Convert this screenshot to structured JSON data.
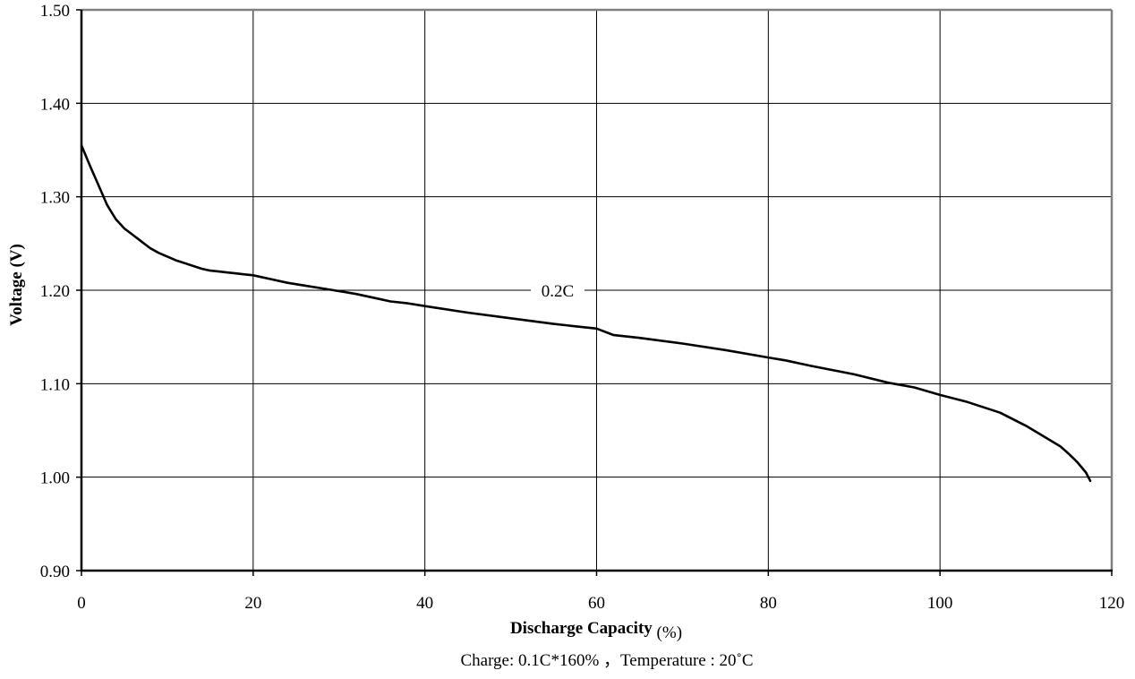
{
  "chart_data": {
    "type": "line",
    "xlabel": "Discharge Capacity",
    "xlabel_unit": "(%)",
    "ylabel": "Voltage (V)",
    "footnote": "Charge: 0.1C*160% ，Temperature : 20˚C",
    "xlim": [
      0,
      120
    ],
    "ylim": [
      0.9,
      1.5
    ],
    "x_ticks": [
      0,
      20,
      40,
      60,
      80,
      100,
      120
    ],
    "x_tick_labels": [
      "0",
      "20",
      "40",
      "60",
      "80",
      "100",
      "120"
    ],
    "y_ticks": [
      0.9,
      1.0,
      1.1,
      1.2,
      1.3,
      1.4,
      1.5
    ],
    "y_tick_labels": [
      "0.90",
      "1.00",
      "1.10",
      "1.20",
      "1.30",
      "1.40",
      "1.50"
    ],
    "grid": true,
    "series_label": "0.2C",
    "series": [
      {
        "name": "0.2C",
        "x": [
          0,
          1,
          2,
          3,
          4,
          5,
          6,
          7,
          8,
          9,
          10,
          11,
          12,
          13,
          14,
          15,
          16,
          17,
          18,
          19,
          20,
          22,
          24,
          26,
          28,
          30,
          32,
          34,
          36,
          38,
          40,
          45,
          50,
          55,
          60,
          62,
          65,
          70,
          75,
          80,
          82,
          85,
          90,
          94,
          97,
          100,
          103,
          107,
          110,
          112,
          114,
          115,
          116,
          117,
          117.5
        ],
        "y": [
          1.355,
          1.333,
          1.312,
          1.291,
          1.276,
          1.266,
          1.259,
          1.252,
          1.245,
          1.24,
          1.236,
          1.232,
          1.229,
          1.226,
          1.223,
          1.221,
          1.22,
          1.219,
          1.218,
          1.217,
          1.216,
          1.212,
          1.208,
          1.205,
          1.202,
          1.199,
          1.196,
          1.192,
          1.188,
          1.186,
          1.183,
          1.176,
          1.17,
          1.164,
          1.159,
          1.152,
          1.149,
          1.143,
          1.136,
          1.128,
          1.125,
          1.119,
          1.11,
          1.101,
          1.096,
          1.088,
          1.081,
          1.069,
          1.055,
          1.044,
          1.033,
          1.025,
          1.016,
          1.005,
          0.996
        ]
      }
    ]
  }
}
